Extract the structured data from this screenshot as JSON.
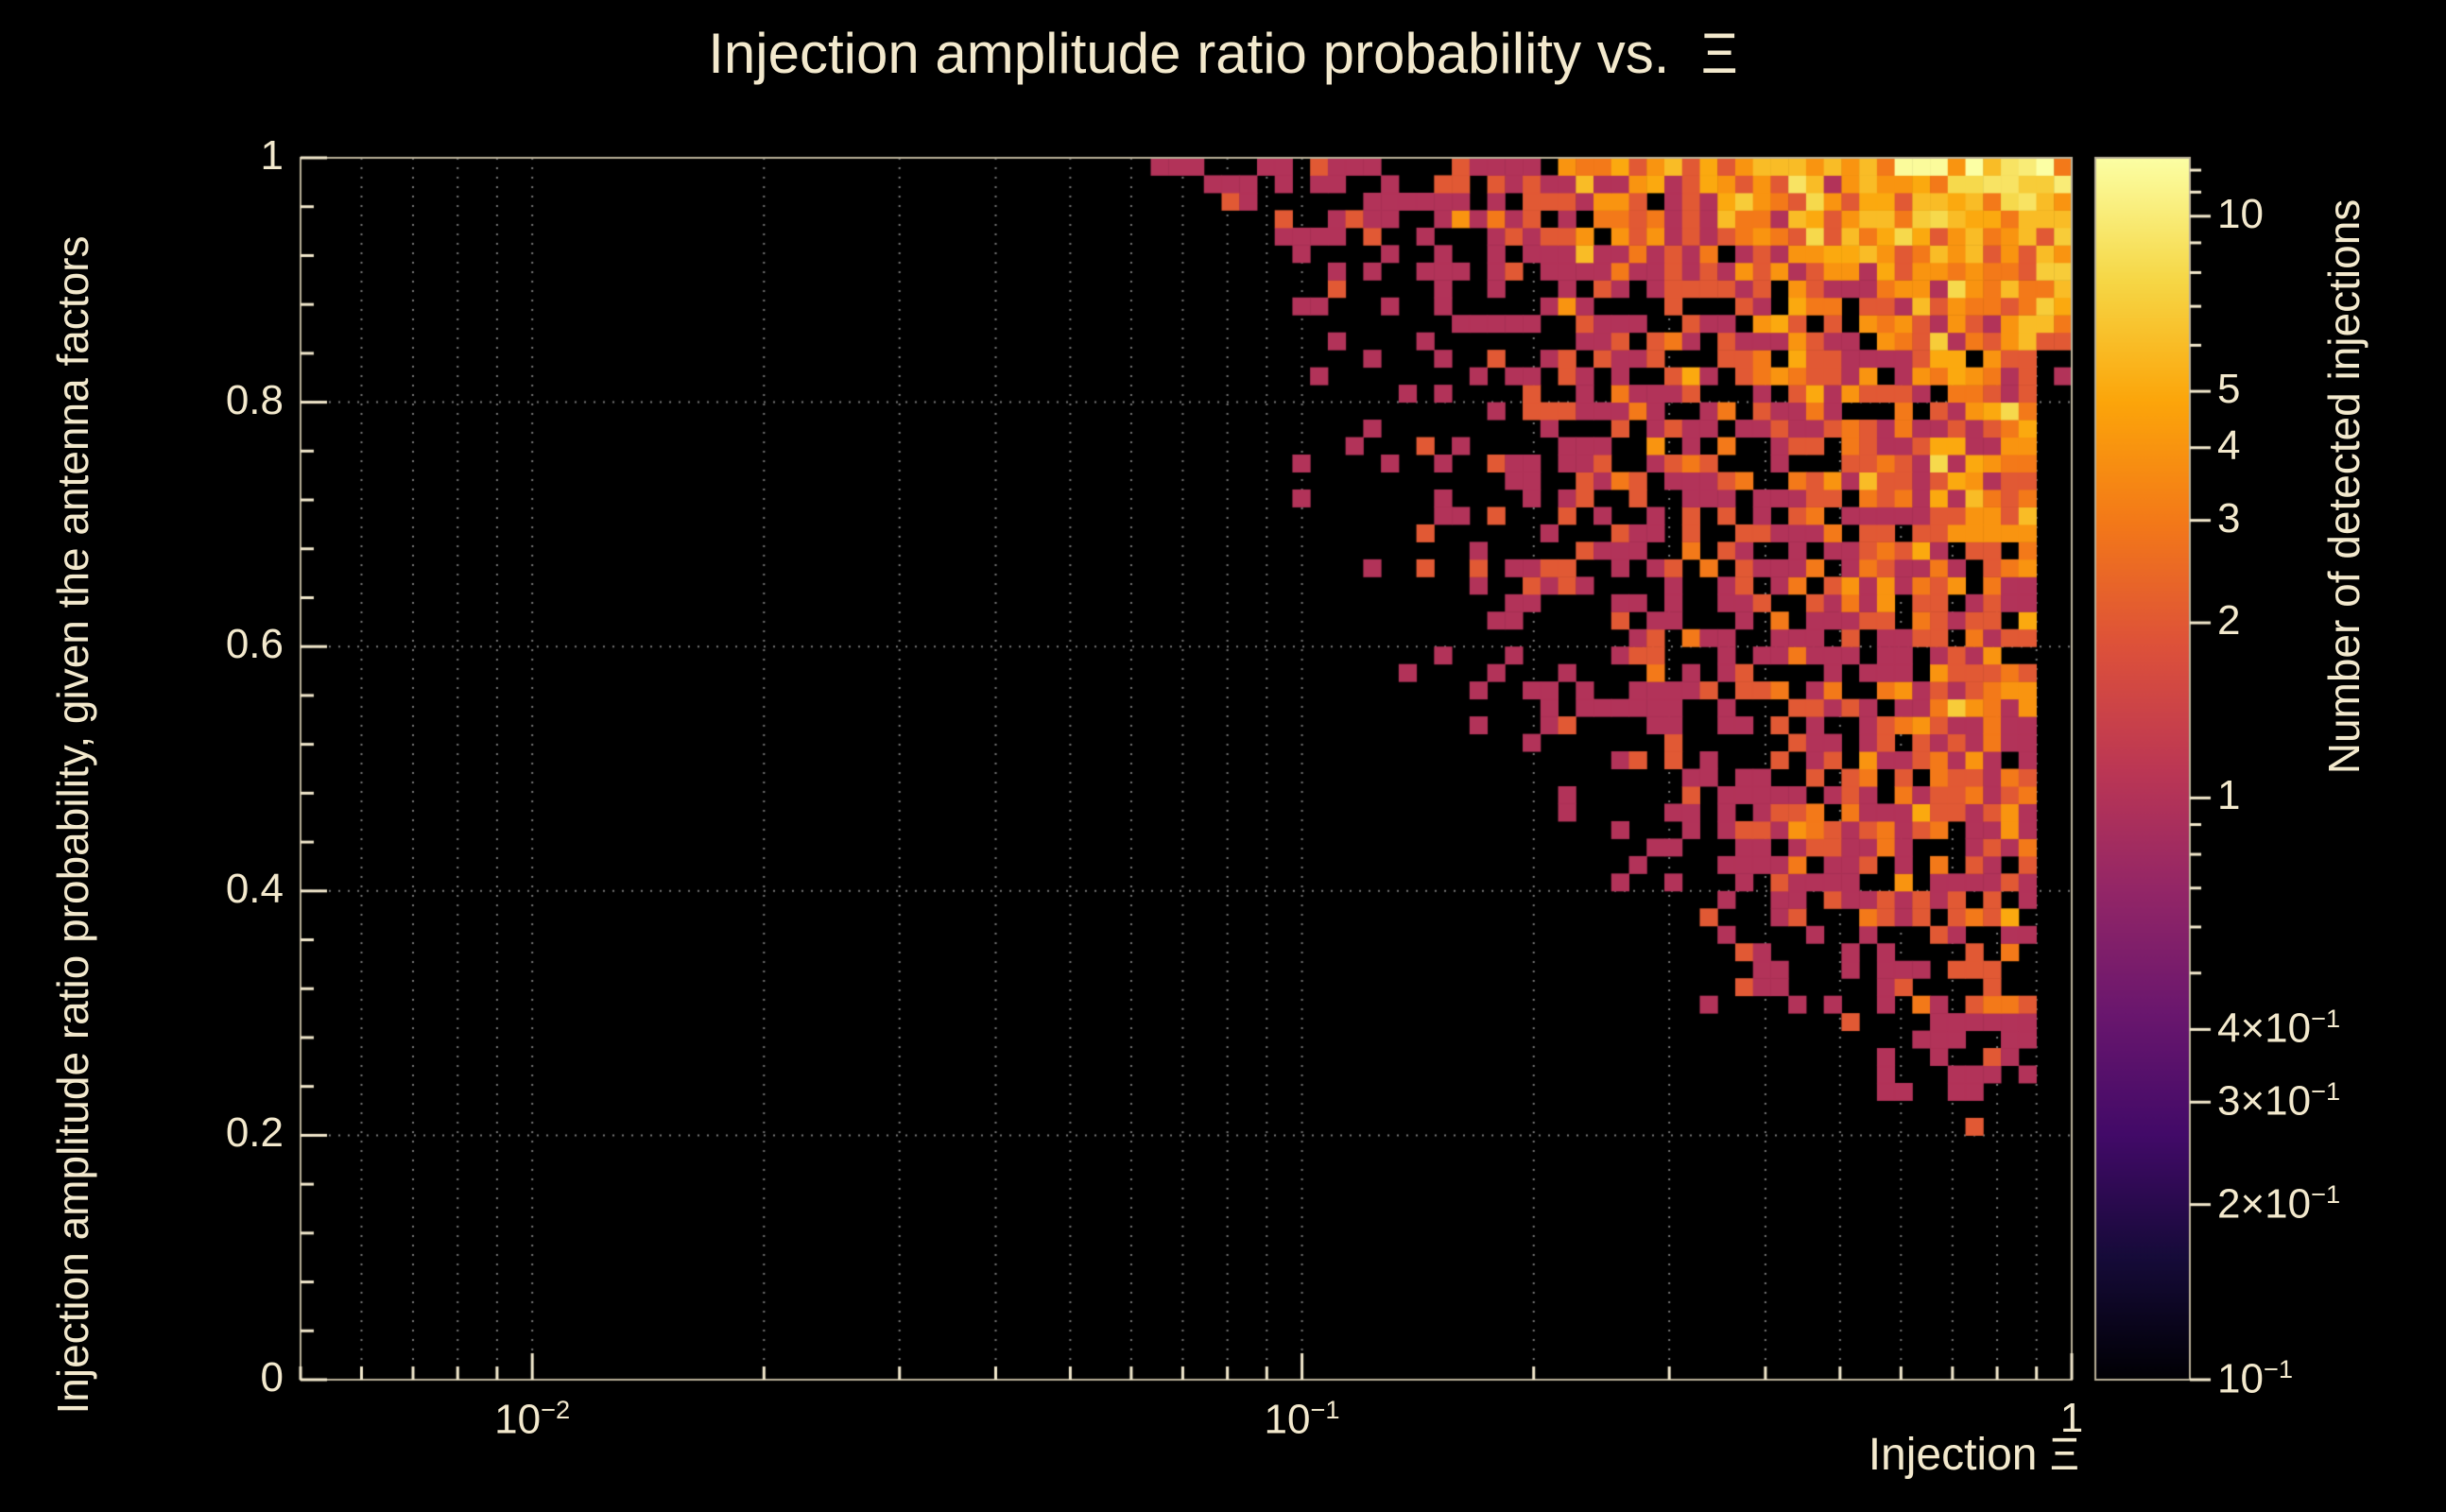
{
  "title": "Injection amplitude ratio probability vs.  Ξ",
  "x_axis": {
    "title": "Injection Ξ",
    "scale": "log10",
    "ticks": [
      {
        "value": 0.01,
        "label": "10^-2"
      },
      {
        "value": 0.1,
        "label": "10^-1"
      },
      {
        "value": 1,
        "label": "1"
      }
    ]
  },
  "y_axis": {
    "title": "Injection amplitude ratio probability, given the antenna factors",
    "scale": "linear",
    "ticks": [
      {
        "value": 0,
        "label": "0"
      },
      {
        "value": 0.2,
        "label": "0.2"
      },
      {
        "value": 0.4,
        "label": "0.4"
      },
      {
        "value": 0.6,
        "label": "0.6"
      },
      {
        "value": 0.8,
        "label": "0.8"
      },
      {
        "value": 1,
        "label": "1"
      }
    ]
  },
  "colorbar": {
    "title": "Number of detected injections",
    "scale": "log10",
    "ticks": [
      {
        "value": 10,
        "label": "10"
      },
      {
        "value": 5,
        "label": "5"
      },
      {
        "value": 4,
        "label": "4"
      },
      {
        "value": 3,
        "label": "3"
      },
      {
        "value": 2,
        "label": "2"
      },
      {
        "value": 1,
        "label": "1"
      },
      {
        "value": 0.4,
        "label": "4×10^-1"
      },
      {
        "value": 0.3,
        "label": "3×10^-1"
      },
      {
        "value": 0.2,
        "label": "2×10^-1"
      },
      {
        "value": 0.1,
        "label": "10^-1"
      }
    ],
    "minor_ticks": [
      0.5,
      0.6,
      0.7,
      0.8,
      0.9,
      6,
      7,
      8,
      9,
      11,
      12
    ]
  },
  "colors": {
    "background": "#000000",
    "text": "#f3e9cd",
    "grid": "#7a7a7a",
    "frame": "#b9b098"
  },
  "colormap": {
    "name": "inferno",
    "stops": [
      [
        0.0,
        "#000004"
      ],
      [
        0.1,
        "#160b39"
      ],
      [
        0.2,
        "#420a68"
      ],
      [
        0.3,
        "#6a176e"
      ],
      [
        0.4,
        "#932667"
      ],
      [
        0.5,
        "#bc3754"
      ],
      [
        0.6,
        "#dd513a"
      ],
      [
        0.7,
        "#f37819"
      ],
      [
        0.8,
        "#fca50a"
      ],
      [
        0.9,
        "#f6d746"
      ],
      [
        1.0,
        "#fcffa4"
      ]
    ]
  },
  "chart_data": {
    "type": "heatmap",
    "title": "Injection amplitude ratio probability vs.  Ξ",
    "xlabel": "Injection Ξ",
    "ylabel": "Injection amplitude ratio probability, given the antenna factors",
    "zlabel": "Number of detected injections",
    "x_scale": "log10",
    "x_range": [
      0.005,
      1.0
    ],
    "y_scale": "linear",
    "y_range": [
      0,
      1
    ],
    "z_scale": "log10",
    "z_range": [
      0.1,
      12.6
    ],
    "grid": true,
    "legend_position": "right-colorbar",
    "bins": {
      "nx": 100,
      "ny": 70
    },
    "description": "2D histogram of detected injections. Occupied bins only for injection Ξ ≳ 0.06; the lower-left occupancy boundary falls from (Ξ≈0.06, p≈1) down to (Ξ≈0.8, p≈0.18), roughly p_min(Ξ)=(0.06/Ξ)^0.645. Bin counts grow toward the upper right, from isolated single counts (red/orange) along the boundary to counts above 10 (pale yellow/white) near Ξ≈0.8–1, p≈0.9–1. A black gap is present at Ξ>0.88 for p<0.84 and everywhere below the boundary.",
    "generator": {
      "seed": 1337,
      "nx": 100,
      "ny": 70,
      "base_rate": 5.0,
      "x_onset_log10": -1.25,
      "x_power": 2.2,
      "y_floor": 0.12,
      "y_power": 1.6,
      "top_band_start": 0.88,
      "top_band_boost": 0.9,
      "top_band_add": 0.5,
      "boundary_x0": 0.06,
      "boundary_power": 0.645,
      "edge_offset": 0.05,
      "edge_softness": 0.16,
      "edge_power": 1.2,
      "right_cutoff_x": 0.88,
      "right_cutoff_y": 0.84,
      "right_cutoff_factor": 0.03
    }
  }
}
